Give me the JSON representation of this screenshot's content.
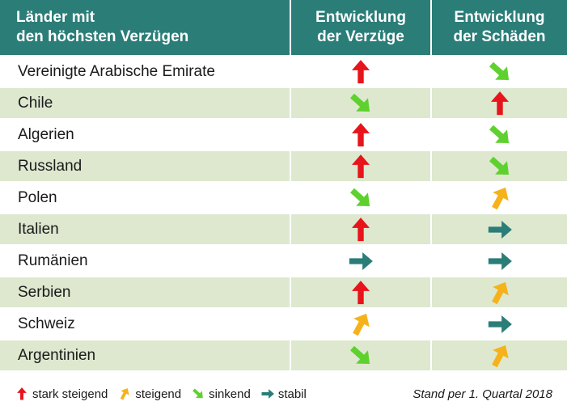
{
  "chart_data": {
    "type": "table",
    "columns": [
      "Länder mit den höchsten Verzügen",
      "Entwicklung der Verzüge",
      "Entwicklung der Schäden"
    ],
    "header": {
      "col0": [
        "Länder mit",
        "den höchsten Verzügen"
      ],
      "col1": [
        "Entwicklung",
        "der Verzüge"
      ],
      "col2": [
        "Entwicklung",
        "der Schäden"
      ]
    },
    "rows": [
      {
        "country": "Vereinigte Arabische Emirate",
        "verzuege": "stark steigend",
        "schaeden": "sinkend"
      },
      {
        "country": "Chile",
        "verzuege": "sinkend",
        "schaeden": "stark steigend"
      },
      {
        "country": "Algerien",
        "verzuege": "stark steigend",
        "schaeden": "sinkend"
      },
      {
        "country": "Russland",
        "verzuege": "stark steigend",
        "schaeden": "sinkend"
      },
      {
        "country": "Polen",
        "verzuege": "sinkend",
        "schaeden": "steigend"
      },
      {
        "country": "Italien",
        "verzuege": "stark steigend",
        "schaeden": "stabil"
      },
      {
        "country": "Rumänien",
        "verzuege": "stabil",
        "schaeden": "stabil"
      },
      {
        "country": "Serbien",
        "verzuege": "stark steigend",
        "schaeden": "steigend"
      },
      {
        "country": "Schweiz",
        "verzuege": "steigend",
        "schaeden": "stabil"
      },
      {
        "country": "Argentinien",
        "verzuege": "sinkend",
        "schaeden": "steigend"
      }
    ],
    "legend": [
      {
        "key": "stark steigend",
        "label": "stark steigend",
        "color": "#e8141b",
        "icon": "arrow-up-icon"
      },
      {
        "key": "steigend",
        "label": "steigend",
        "color": "#f6b21b",
        "icon": "arrow-up-right-icon"
      },
      {
        "key": "sinkend",
        "label": "sinkend",
        "color": "#5fd12f",
        "icon": "arrow-down-right-icon"
      },
      {
        "key": "stabil",
        "label": "stabil",
        "color": "#2b7d78",
        "icon": "arrow-right-icon"
      }
    ],
    "note": "Stand per 1. Quartal 2018"
  },
  "colors": {
    "header_bg": "#2b7d78",
    "row_shade": "#dde8cf"
  }
}
